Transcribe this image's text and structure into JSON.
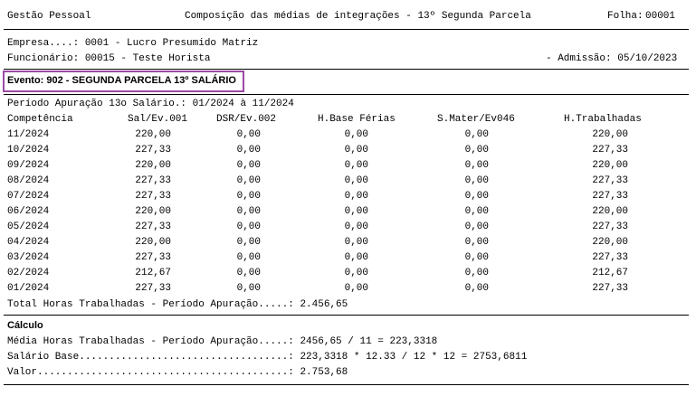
{
  "header": {
    "system": "Gestão Pessoal",
    "report_title": "Composição das médias de integrações - 13º Segunda Parcela",
    "page_label": "Folha:",
    "page_number": "00001"
  },
  "info": {
    "empresa": "Empresa....: 0001 - Lucro Presumido Matriz",
    "funcionario": "Funcionário: 00015 - Teste Horista",
    "admissao": "- Admissão: 05/10/2023"
  },
  "evento": "Evento: 902 - SEGUNDA PARCELA 13º SALÁRIO",
  "periodo": "Período Apuração 13o Salário.: 01/2024 à 11/2024",
  "table": {
    "columns": [
      "Competência",
      "Sal/Ev.001",
      "DSR/Ev.002",
      "H.Base Férias",
      "S.Mater/Ev046",
      "H.Trabalhadas"
    ],
    "rows": [
      [
        "11/2024",
        "220,00",
        "0,00",
        "0,00",
        "0,00",
        "220,00"
      ],
      [
        "10/2024",
        "227,33",
        "0,00",
        "0,00",
        "0,00",
        "227,33"
      ],
      [
        "09/2024",
        "220,00",
        "0,00",
        "0,00",
        "0,00",
        "220,00"
      ],
      [
        "08/2024",
        "227,33",
        "0,00",
        "0,00",
        "0,00",
        "227,33"
      ],
      [
        "07/2024",
        "227,33",
        "0,00",
        "0,00",
        "0,00",
        "227,33"
      ],
      [
        "06/2024",
        "220,00",
        "0,00",
        "0,00",
        "0,00",
        "220,00"
      ],
      [
        "05/2024",
        "227,33",
        "0,00",
        "0,00",
        "0,00",
        "227,33"
      ],
      [
        "04/2024",
        "220,00",
        "0,00",
        "0,00",
        "0,00",
        "220,00"
      ],
      [
        "03/2024",
        "227,33",
        "0,00",
        "0,00",
        "0,00",
        "227,33"
      ],
      [
        "02/2024",
        "212,67",
        "0,00",
        "0,00",
        "0,00",
        "212,67"
      ],
      [
        "01/2024",
        "227,33",
        "0,00",
        "0,00",
        "0,00",
        "227,33"
      ]
    ],
    "total": "Total Horas Trabalhadas - Período Apuração.....: 2.456,65"
  },
  "calculo": {
    "title": "Cálculo",
    "lines": [
      "Média Horas Trabalhadas - Período Apuração.....: 2456,65 / 11 = 223,3318",
      "Salário Base...................................: 223,3318 * 12.33 / 12 * 12 = 2753,6811",
      "Valor..........................................: 2.753,68"
    ]
  }
}
